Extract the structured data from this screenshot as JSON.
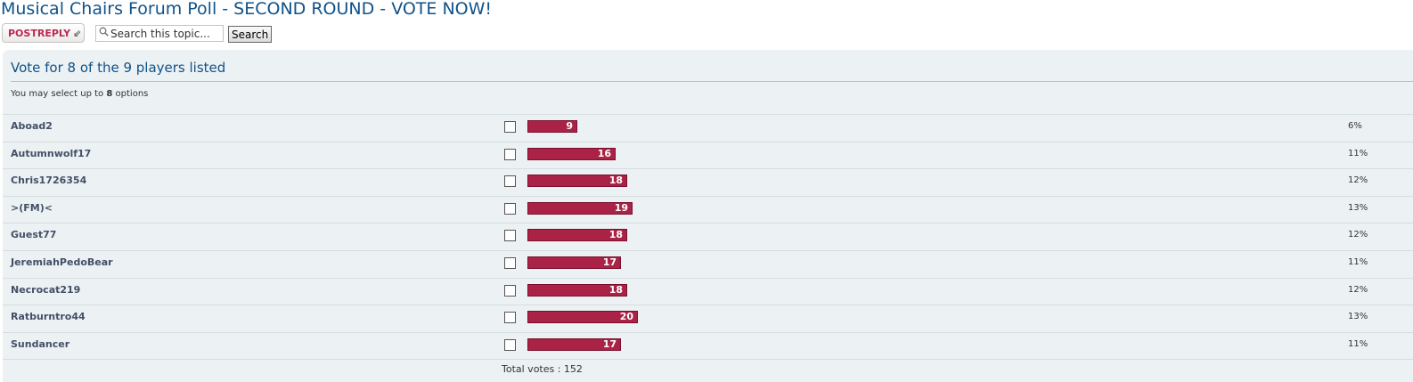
{
  "topic": {
    "title": "Musical Chairs Forum Poll - SECOND ROUND - VOTE NOW!"
  },
  "toolbar": {
    "post_reply_prefix": "POST",
    "post_reply_suffix": "REPLY",
    "post_reply_icon": "reply-arrow-icon",
    "search_placeholder": "Search this topic...",
    "search_button": "Search",
    "search_icon": "magnifier-icon"
  },
  "poll": {
    "title": "Vote for 8 of the 9 players listed",
    "hint_prefix": "You may select up to",
    "hint_max": "8",
    "hint_suffix": "options",
    "accent_color": "#aa2346",
    "options": [
      {
        "name": "Aboad2",
        "votes": "9",
        "percent": "6%"
      },
      {
        "name": "Autumnwolf17",
        "votes": "16",
        "percent": "11%"
      },
      {
        "name": "Chris1726354",
        "votes": "18",
        "percent": "12%"
      },
      {
        "name": ">(FM)<",
        "votes": "19",
        "percent": "13%"
      },
      {
        "name": "Guest77",
        "votes": "18",
        "percent": "12%"
      },
      {
        "name": "JeremiahPedoBear",
        "votes": "17",
        "percent": "11%"
      },
      {
        "name": "Necrocat219",
        "votes": "18",
        "percent": "12%"
      },
      {
        "name": "Ratburntro44",
        "votes": "20",
        "percent": "13%"
      },
      {
        "name": "Sundancer",
        "votes": "17",
        "percent": "11%"
      }
    ],
    "total_label": "Total votes : 152"
  }
}
